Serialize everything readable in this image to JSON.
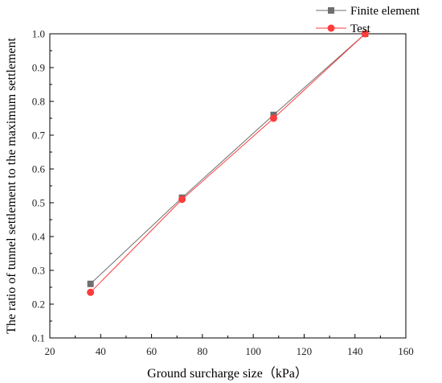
{
  "chart_data": {
    "type": "line",
    "title": "",
    "xlabel": "Ground surcharge size（kPa）",
    "ylabel": "The ratio of tunnel settlement to the maximum settlement",
    "xlim": [
      20,
      160
    ],
    "ylim": [
      0.1,
      1.0
    ],
    "x_ticks": [
      "20",
      "40",
      "60",
      "80",
      "100",
      "120",
      "140",
      "160"
    ],
    "y_ticks": [
      "0.1",
      "0.2",
      "0.3",
      "0.4",
      "0.5",
      "0.6",
      "0.7",
      "0.8",
      "0.9",
      "1.0"
    ],
    "x": [
      36,
      72,
      108,
      144
    ],
    "series": [
      {
        "name": "Finite element",
        "values": [
          0.26,
          0.515,
          0.76,
          1.0
        ],
        "color": "#6e6e6e",
        "marker": "square"
      },
      {
        "name": "Test",
        "values": [
          0.235,
          0.51,
          0.75,
          1.0
        ],
        "color": "#ff3b3b",
        "marker": "circle"
      }
    ],
    "grid": false,
    "legend_position": "top-right, outside plot"
  }
}
